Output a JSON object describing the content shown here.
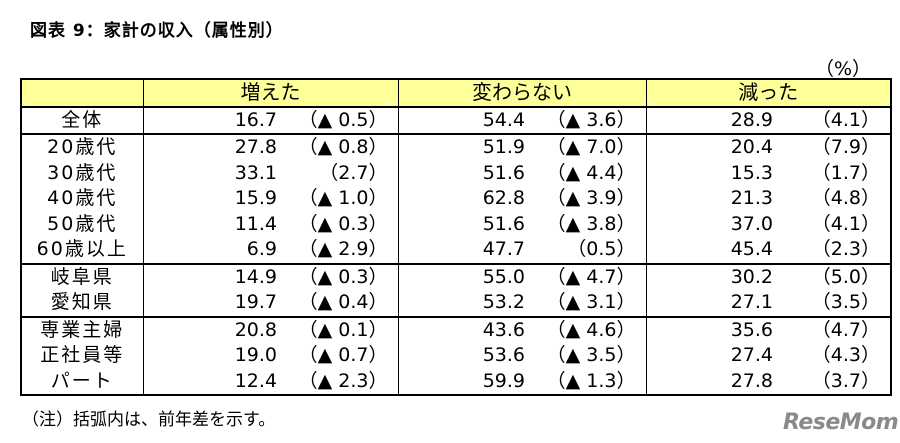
{
  "title": "図表 9：家計の収入（属性別）",
  "unit": "（%）",
  "columns": [
    "増えた",
    "変わらない",
    "減った"
  ],
  "rows": [
    {
      "label": "全体",
      "v1": "16.7",
      "c1": "（▲ 0.5）",
      "v2": "54.4",
      "c2": "（▲ 3.6）",
      "v3": "28.9",
      "c3": "（4.1）"
    },
    {
      "label": "20歳代",
      "v1": "27.8",
      "c1": "（▲ 0.8）",
      "v2": "51.9",
      "c2": "（▲ 7.0）",
      "v3": "20.4",
      "c3": "（7.9）"
    },
    {
      "label": "30歳代",
      "v1": "33.1",
      "c1": "（2.7）",
      "v2": "51.6",
      "c2": "（▲ 4.4）",
      "v3": "15.3",
      "c3": "（1.7）"
    },
    {
      "label": "40歳代",
      "v1": "15.9",
      "c1": "（▲ 1.0）",
      "v2": "62.8",
      "c2": "（▲ 3.9）",
      "v3": "21.3",
      "c3": "（4.8）"
    },
    {
      "label": "50歳代",
      "v1": "11.4",
      "c1": "（▲ 0.3）",
      "v2": "51.6",
      "c2": "（▲ 3.8）",
      "v3": "37.0",
      "c3": "（4.1）"
    },
    {
      "label": "60歳以上",
      "v1": "6.9",
      "c1": "（▲ 2.9）",
      "v2": "47.7",
      "c2": "（0.5）",
      "v3": "45.4",
      "c3": "（2.3）"
    },
    {
      "label": "岐阜県",
      "v1": "14.9",
      "c1": "（▲ 0.3）",
      "v2": "55.0",
      "c2": "（▲ 4.7）",
      "v3": "30.2",
      "c3": "（5.0）"
    },
    {
      "label": "愛知県",
      "v1": "19.7",
      "c1": "（▲ 0.4）",
      "v2": "53.2",
      "c2": "（▲ 3.1）",
      "v3": "27.1",
      "c3": "（3.5）"
    },
    {
      "label": "専業主婦",
      "v1": "20.8",
      "c1": "（▲ 0.1）",
      "v2": "43.6",
      "c2": "（▲ 4.6）",
      "v3": "35.6",
      "c3": "（4.7）"
    },
    {
      "label": "正社員等",
      "v1": "19.0",
      "c1": "（▲ 0.7）",
      "v2": "53.6",
      "c2": "（▲ 3.5）",
      "v3": "27.4",
      "c3": "（4.3）"
    },
    {
      "label": "パート",
      "v1": "12.4",
      "c1": "（▲ 2.3）",
      "v2": "59.9",
      "c2": "（▲ 1.3）",
      "v3": "27.8",
      "c3": "（3.7）"
    }
  ],
  "note": "（注）括弧内は、前年差を示す。",
  "logo": "ReseMom"
}
